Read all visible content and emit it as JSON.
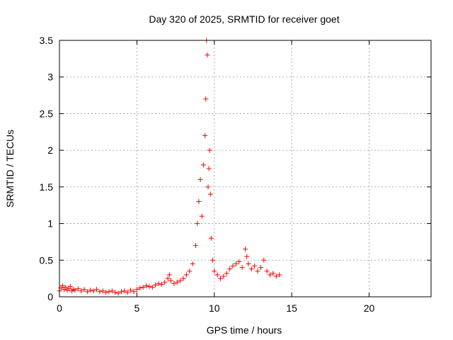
{
  "chart_data": {
    "type": "scatter",
    "title": "Day 320 of 2025, SRMTID for receiver goet",
    "xlabel": "GPS time / hours",
    "ylabel": "SRMTID / TECUs",
    "xlim": [
      0,
      24
    ],
    "ylim": [
      0,
      3.5
    ],
    "x_ticks": [
      0,
      5,
      10,
      15,
      20
    ],
    "x_tick_labels": [
      "0",
      "5",
      "10",
      "15",
      "20"
    ],
    "y_ticks": [
      0,
      0.5,
      1,
      1.5,
      2,
      2.5,
      3,
      3.5
    ],
    "y_tick_labels": [
      "0",
      "0.5",
      "1",
      "1.5",
      "2",
      "2.5",
      "3",
      "3.5"
    ],
    "grid": true,
    "marker": "+",
    "series_color": "#ff0000",
    "series": [
      {
        "name": "SRMTID",
        "x": [
          0.0,
          0.1,
          0.2,
          0.3,
          0.4,
          0.5,
          0.6,
          0.7,
          0.8,
          0.9,
          1.0,
          1.2,
          1.4,
          1.6,
          1.8,
          2.0,
          2.2,
          2.4,
          2.6,
          2.8,
          3.0,
          3.2,
          3.4,
          3.6,
          3.8,
          4.0,
          4.2,
          4.4,
          4.6,
          4.8,
          5.0,
          5.2,
          5.4,
          5.6,
          5.8,
          6.0,
          6.2,
          6.4,
          6.6,
          6.8,
          7.0,
          7.1,
          7.2,
          7.4,
          7.6,
          7.8,
          8.0,
          8.2,
          8.4,
          8.6,
          8.8,
          8.9,
          9.0,
          9.1,
          9.2,
          9.3,
          9.4,
          9.45,
          9.5,
          9.55,
          9.6,
          9.65,
          9.7,
          9.75,
          9.8,
          9.9,
          10.0,
          10.2,
          10.4,
          10.6,
          10.8,
          11.0,
          11.2,
          11.4,
          11.6,
          11.8,
          12.0,
          12.1,
          12.2,
          12.4,
          12.6,
          12.8,
          13.0,
          13.2,
          13.4,
          13.6,
          13.8,
          14.0,
          14.2
        ],
        "y": [
          0.08,
          0.12,
          0.15,
          0.1,
          0.13,
          0.09,
          0.11,
          0.14,
          0.08,
          0.1,
          0.09,
          0.11,
          0.08,
          0.1,
          0.07,
          0.09,
          0.08,
          0.1,
          0.07,
          0.08,
          0.06,
          0.07,
          0.08,
          0.06,
          0.05,
          0.07,
          0.08,
          0.06,
          0.09,
          0.07,
          0.1,
          0.12,
          0.13,
          0.15,
          0.14,
          0.13,
          0.16,
          0.18,
          0.17,
          0.2,
          0.25,
          0.3,
          0.22,
          0.18,
          0.2,
          0.22,
          0.25,
          0.3,
          0.35,
          0.45,
          0.7,
          1.0,
          1.3,
          1.6,
          1.1,
          1.8,
          2.2,
          2.7,
          3.5,
          3.3,
          1.5,
          1.75,
          2.0,
          1.4,
          0.8,
          0.5,
          0.35,
          0.3,
          0.25,
          0.28,
          0.32,
          0.38,
          0.42,
          0.45,
          0.48,
          0.4,
          0.65,
          0.55,
          0.45,
          0.38,
          0.42,
          0.35,
          0.4,
          0.5,
          0.35,
          0.3,
          0.32,
          0.28,
          0.3
        ]
      }
    ]
  }
}
